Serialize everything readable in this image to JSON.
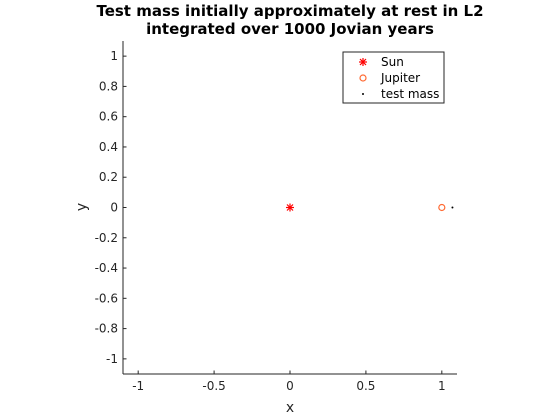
{
  "chart_data": {
    "type": "scatter",
    "title_lines": [
      "Test mass initially approximately at rest in L2",
      "integrated over 1000 Jovian years"
    ],
    "xlabel": "x",
    "ylabel": "y",
    "xlim": [
      -1.1,
      1.1
    ],
    "ylim": [
      -1.1,
      1.1
    ],
    "xticks": [
      -1,
      -0.5,
      0,
      0.5,
      1
    ],
    "xtick_labels": [
      "-1",
      "-0.5",
      "0",
      "0.5",
      "1"
    ],
    "yticks": [
      1,
      0.8,
      0.6,
      0.4,
      0.2,
      0,
      -0.2,
      -0.4,
      -0.6,
      -0.8,
      -1
    ],
    "ytick_labels": [
      "1",
      "0.8",
      "0.6",
      "0.4",
      "0.2",
      "0",
      "-0.2",
      "-0.4",
      "-0.6",
      "-0.8",
      "-1"
    ],
    "grid": false,
    "legend_position": "top-right",
    "series": [
      {
        "name": "Sun",
        "marker": "asterisk",
        "color": "#ff0000",
        "x": [
          0
        ],
        "y": [
          0
        ]
      },
      {
        "name": "Jupiter",
        "marker": "circle",
        "color": "#ff6a33",
        "x": [
          1
        ],
        "y": [
          0
        ]
      },
      {
        "name": "test mass",
        "marker": "dot",
        "color": "#000000",
        "x": [
          1.07
        ],
        "y": [
          0
        ]
      }
    ]
  }
}
